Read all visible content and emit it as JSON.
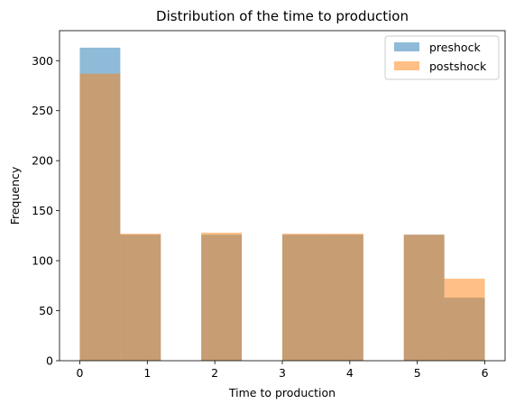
{
  "chart_data": {
    "type": "bar",
    "title": "Distribution of the time to production",
    "xlabel": "Time to production",
    "ylabel": "Frequency",
    "xlim": [
      -0.3,
      6.3
    ],
    "ylim": [
      0,
      330
    ],
    "x_ticks": [
      0,
      1,
      2,
      3,
      4,
      5,
      6
    ],
    "y_ticks": [
      0,
      50,
      100,
      150,
      200,
      250,
      300
    ],
    "bin_edges": [
      0,
      0.6,
      1.2,
      1.8,
      2.4,
      3.0,
      3.6,
      4.2,
      4.8,
      5.4,
      6.0
    ],
    "series": [
      {
        "name": "preshock",
        "color": "#1f77b4",
        "opacity": 0.5,
        "values": [
          313,
          126,
          0,
          126,
          0,
          126,
          126,
          0,
          126,
          63
        ]
      },
      {
        "name": "postshock",
        "color": "#ff7f0e",
        "opacity": 0.5,
        "values": [
          287,
          127,
          0,
          128,
          0,
          127,
          127,
          0,
          126,
          82
        ]
      }
    ],
    "legend": {
      "position": "top-right",
      "items": [
        "preshock",
        "postshock"
      ]
    },
    "grid": false
  }
}
